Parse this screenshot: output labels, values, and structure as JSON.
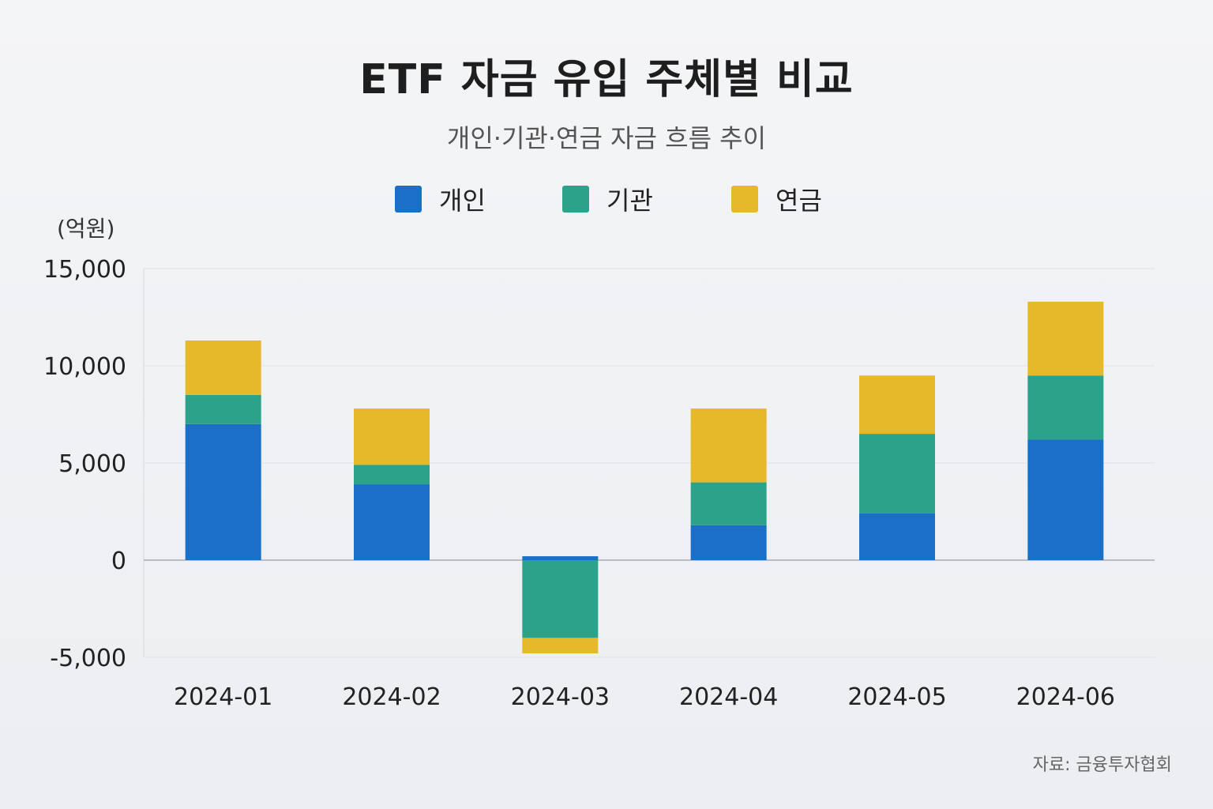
{
  "title": "ETF 자금 유입 주체별 비교",
  "subtitle": "개인·기관·연금 자금 흐름 추이",
  "unit_label": "(억원)",
  "source": "자료: 금융투자협회",
  "legend": [
    {
      "label": "개인",
      "color": "#1b6fc8"
    },
    {
      "label": "기관",
      "color": "#2ba38b"
    },
    {
      "label": "연금",
      "color": "#e6b92a"
    }
  ],
  "chart_data": {
    "type": "bar",
    "stacked": true,
    "title": "ETF 자금 유입 주체별 비교",
    "subtitle": "개인·기관·연금 자금 흐름 추이",
    "ylabel": "(억원)",
    "categories": [
      "2024-01",
      "2024-02",
      "2024-03",
      "2024-04",
      "2024-05",
      "2024-06"
    ],
    "series": [
      {
        "name": "개인",
        "color": "#1b6fc8",
        "values": [
          7000,
          3900,
          200,
          1800,
          2400,
          6200
        ]
      },
      {
        "name": "기관",
        "color": "#2ba38b",
        "values": [
          1500,
          1000,
          -4000,
          2200,
          4100,
          3300
        ]
      },
      {
        "name": "연금",
        "color": "#e6b92a",
        "values": [
          2800,
          2900,
          -800,
          3800,
          3000,
          3800
        ]
      }
    ],
    "ylim": [
      -5000,
      15000
    ],
    "yticks": [
      -5000,
      0,
      5000,
      10000,
      15000
    ],
    "ytick_labels": [
      "-5,000",
      "0",
      "5,000",
      "10,000",
      "15,000"
    ],
    "grid": true,
    "legend_position": "top-center"
  }
}
